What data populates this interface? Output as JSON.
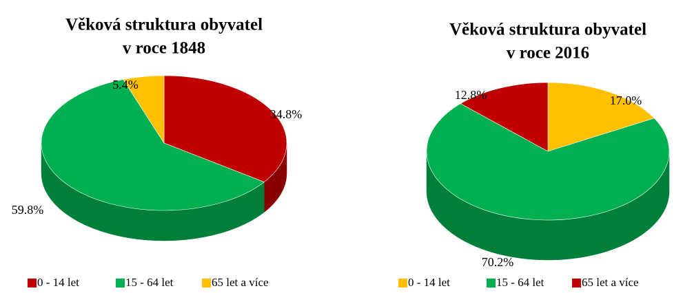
{
  "chart_data": [
    {
      "type": "pie3d",
      "title": [
        "Věková struktura obyvatel",
        "v roce 1848"
      ],
      "categories": [
        "0 - 14 let",
        "15 - 64 let",
        "65 let a více"
      ],
      "values": [
        34.8,
        59.8,
        5.4
      ],
      "value_labels": [
        "34.8%",
        "59.8%",
        "5.4%"
      ],
      "colors": [
        "#c00000",
        "#00b050",
        "#ffc000"
      ],
      "legend": "bottom"
    },
    {
      "type": "pie3d",
      "title": [
        "Věková struktura obyvatel",
        "v roce 2016"
      ],
      "categories": [
        "0 - 14 let",
        "15 - 64 let",
        "65 let a více"
      ],
      "values": [
        17.0,
        70.2,
        12.8
      ],
      "value_labels": [
        "17.0%",
        "70.2%",
        "12.8%"
      ],
      "colors": [
        "#ffc000",
        "#00b050",
        "#c00000"
      ],
      "legend": "bottom"
    }
  ]
}
